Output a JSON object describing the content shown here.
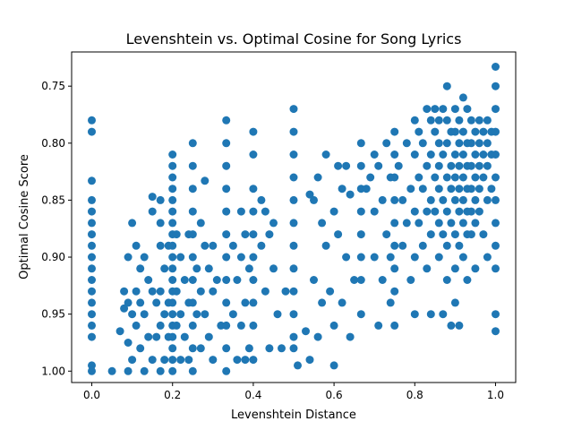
{
  "chart_data": {
    "type": "scatter",
    "title": "Levenshtein vs. Optimal Cosine for Song Lyrics",
    "xlabel": "Levenshtein Distance",
    "ylabel": "Optimal Cosine Score",
    "xlim": [
      -0.05,
      1.05
    ],
    "ylim": [
      1.01,
      0.72
    ],
    "y_axis_inverted": true,
    "xticks": [
      0.0,
      0.2,
      0.4,
      0.6,
      0.8,
      1.0
    ],
    "xtick_labels": [
      "0.0",
      "0.2",
      "0.4",
      "0.6",
      "0.8",
      "1.0"
    ],
    "yticks": [
      0.75,
      0.8,
      0.85,
      0.9,
      0.95,
      1.0
    ],
    "ytick_labels": [
      "0.75",
      "0.80",
      "0.85",
      "0.90",
      "0.95",
      "1.00"
    ],
    "grid": false,
    "marker_color": "#1f77b4",
    "points": [
      [
        0.0,
        0.78
      ],
      [
        0.0,
        0.79
      ],
      [
        0.0,
        0.833
      ],
      [
        0.0,
        0.85
      ],
      [
        0.0,
        0.86
      ],
      [
        0.0,
        0.87
      ],
      [
        0.0,
        0.88
      ],
      [
        0.0,
        0.89
      ],
      [
        0.0,
        0.9
      ],
      [
        0.0,
        0.91
      ],
      [
        0.0,
        0.92
      ],
      [
        0.0,
        0.93
      ],
      [
        0.0,
        0.94
      ],
      [
        0.0,
        0.95
      ],
      [
        0.0,
        0.96
      ],
      [
        0.0,
        0.97
      ],
      [
        0.0,
        0.995
      ],
      [
        0.0,
        1.0
      ],
      [
        0.05,
        1.0
      ],
      [
        0.07,
        0.965
      ],
      [
        0.08,
        0.945
      ],
      [
        0.08,
        0.93
      ],
      [
        0.09,
        0.9
      ],
      [
        0.09,
        0.94
      ],
      [
        0.09,
        0.975
      ],
      [
        0.09,
        1.0
      ],
      [
        0.1,
        0.87
      ],
      [
        0.1,
        0.95
      ],
      [
        0.1,
        0.99
      ],
      [
        0.11,
        0.89
      ],
      [
        0.11,
        0.93
      ],
      [
        0.11,
        0.96
      ],
      [
        0.12,
        0.91
      ],
      [
        0.12,
        0.94
      ],
      [
        0.12,
        0.98
      ],
      [
        0.13,
        0.9
      ],
      [
        0.13,
        0.95
      ],
      [
        0.13,
        1.0
      ],
      [
        0.14,
        0.92
      ],
      [
        0.14,
        0.97
      ],
      [
        0.15,
        0.86
      ],
      [
        0.15,
        0.93
      ],
      [
        0.15,
        0.99
      ],
      [
        0.15,
        0.847
      ],
      [
        0.16,
        0.94
      ],
      [
        0.16,
        0.97
      ],
      [
        0.17,
        0.85
      ],
      [
        0.17,
        0.87
      ],
      [
        0.17,
        0.89
      ],
      [
        0.17,
        0.93
      ],
      [
        0.17,
        0.96
      ],
      [
        0.17,
        1.0
      ],
      [
        0.18,
        0.91
      ],
      [
        0.18,
        0.95
      ],
      [
        0.18,
        0.99
      ],
      [
        0.19,
        0.89
      ],
      [
        0.19,
        0.94
      ],
      [
        0.19,
        0.97
      ],
      [
        0.2,
        0.81
      ],
      [
        0.2,
        0.82
      ],
      [
        0.2,
        0.83
      ],
      [
        0.2,
        0.84
      ],
      [
        0.2,
        0.85
      ],
      [
        0.2,
        0.86
      ],
      [
        0.2,
        0.87
      ],
      [
        0.2,
        0.88
      ],
      [
        0.2,
        0.89
      ],
      [
        0.2,
        0.9
      ],
      [
        0.2,
        0.91
      ],
      [
        0.2,
        0.92
      ],
      [
        0.2,
        0.93
      ],
      [
        0.2,
        0.94
      ],
      [
        0.2,
        0.95
      ],
      [
        0.2,
        0.96
      ],
      [
        0.2,
        0.97
      ],
      [
        0.2,
        0.98
      ],
      [
        0.2,
        0.99
      ],
      [
        0.2,
        1.0
      ],
      [
        0.21,
        0.88
      ],
      [
        0.21,
        0.93
      ],
      [
        0.21,
        0.96
      ],
      [
        0.22,
        0.9
      ],
      [
        0.22,
        0.95
      ],
      [
        0.22,
        0.99
      ],
      [
        0.23,
        0.92
      ],
      [
        0.23,
        0.97
      ],
      [
        0.24,
        0.88
      ],
      [
        0.24,
        0.94
      ],
      [
        0.24,
        0.99
      ],
      [
        0.25,
        0.8
      ],
      [
        0.25,
        0.82
      ],
      [
        0.25,
        0.84
      ],
      [
        0.25,
        0.86
      ],
      [
        0.25,
        0.88
      ],
      [
        0.25,
        0.9
      ],
      [
        0.25,
        0.92
      ],
      [
        0.25,
        0.94
      ],
      [
        0.25,
        0.96
      ],
      [
        0.25,
        0.98
      ],
      [
        0.25,
        1.0
      ],
      [
        0.26,
        0.91
      ],
      [
        0.26,
        0.95
      ],
      [
        0.27,
        0.87
      ],
      [
        0.27,
        0.93
      ],
      [
        0.27,
        0.98
      ],
      [
        0.28,
        0.833
      ],
      [
        0.28,
        0.89
      ],
      [
        0.28,
        0.95
      ],
      [
        0.29,
        0.91
      ],
      [
        0.29,
        0.97
      ],
      [
        0.3,
        0.89
      ],
      [
        0.3,
        0.93
      ],
      [
        0.3,
        0.99
      ],
      [
        0.31,
        0.92
      ],
      [
        0.32,
        0.96
      ],
      [
        0.333,
        0.78
      ],
      [
        0.333,
        0.8
      ],
      [
        0.333,
        0.82
      ],
      [
        0.333,
        0.84
      ],
      [
        0.333,
        0.86
      ],
      [
        0.333,
        0.88
      ],
      [
        0.333,
        0.9
      ],
      [
        0.333,
        0.92
      ],
      [
        0.333,
        0.94
      ],
      [
        0.333,
        0.96
      ],
      [
        0.333,
        0.98
      ],
      [
        0.333,
        1.0
      ],
      [
        0.35,
        0.89
      ],
      [
        0.35,
        0.95
      ],
      [
        0.36,
        0.92
      ],
      [
        0.36,
        0.99
      ],
      [
        0.37,
        0.86
      ],
      [
        0.37,
        0.9
      ],
      [
        0.37,
        0.96
      ],
      [
        0.38,
        0.88
      ],
      [
        0.38,
        0.94
      ],
      [
        0.38,
        0.99
      ],
      [
        0.39,
        0.91
      ],
      [
        0.39,
        0.98
      ],
      [
        0.4,
        0.79
      ],
      [
        0.4,
        0.81
      ],
      [
        0.4,
        0.84
      ],
      [
        0.4,
        0.86
      ],
      [
        0.4,
        0.88
      ],
      [
        0.4,
        0.9
      ],
      [
        0.4,
        0.92
      ],
      [
        0.4,
        0.94
      ],
      [
        0.4,
        0.96
      ],
      [
        0.4,
        0.99
      ],
      [
        0.42,
        0.85
      ],
      [
        0.42,
        0.89
      ],
      [
        0.43,
        0.86
      ],
      [
        0.43,
        0.93
      ],
      [
        0.44,
        0.88
      ],
      [
        0.44,
        0.98
      ],
      [
        0.45,
        0.87
      ],
      [
        0.45,
        0.91
      ],
      [
        0.46,
        0.95
      ],
      [
        0.47,
        0.98
      ],
      [
        0.48,
        0.93
      ],
      [
        0.5,
        0.77
      ],
      [
        0.5,
        0.79
      ],
      [
        0.5,
        0.81
      ],
      [
        0.5,
        0.83
      ],
      [
        0.5,
        0.85
      ],
      [
        0.5,
        0.87
      ],
      [
        0.5,
        0.89
      ],
      [
        0.5,
        0.91
      ],
      [
        0.5,
        0.93
      ],
      [
        0.5,
        0.95
      ],
      [
        0.5,
        0.97
      ],
      [
        0.5,
        0.98
      ],
      [
        0.51,
        0.995
      ],
      [
        0.53,
        0.965
      ],
      [
        0.54,
        0.845
      ],
      [
        0.54,
        0.99
      ],
      [
        0.55,
        0.85
      ],
      [
        0.55,
        0.92
      ],
      [
        0.56,
        0.83
      ],
      [
        0.56,
        0.97
      ],
      [
        0.57,
        0.87
      ],
      [
        0.57,
        0.94
      ],
      [
        0.58,
        0.81
      ],
      [
        0.58,
        0.89
      ],
      [
        0.59,
        0.93
      ],
      [
        0.6,
        0.86
      ],
      [
        0.6,
        0.96
      ],
      [
        0.6,
        0.995
      ],
      [
        0.61,
        0.82
      ],
      [
        0.61,
        0.88
      ],
      [
        0.62,
        0.84
      ],
      [
        0.62,
        0.94
      ],
      [
        0.63,
        0.82
      ],
      [
        0.63,
        0.9
      ],
      [
        0.64,
        0.845
      ],
      [
        0.64,
        0.97
      ],
      [
        0.65,
        0.92
      ],
      [
        0.667,
        0.8
      ],
      [
        0.667,
        0.82
      ],
      [
        0.667,
        0.84
      ],
      [
        0.667,
        0.86
      ],
      [
        0.667,
        0.88
      ],
      [
        0.667,
        0.9
      ],
      [
        0.667,
        0.92
      ],
      [
        0.667,
        0.95
      ],
      [
        0.68,
        0.84
      ],
      [
        0.69,
        0.83
      ],
      [
        0.7,
        0.81
      ],
      [
        0.7,
        0.86
      ],
      [
        0.7,
        0.9
      ],
      [
        0.71,
        0.82
      ],
      [
        0.71,
        0.96
      ],
      [
        0.72,
        0.85
      ],
      [
        0.72,
        0.92
      ],
      [
        0.73,
        0.8
      ],
      [
        0.73,
        0.88
      ],
      [
        0.74,
        0.83
      ],
      [
        0.74,
        0.9
      ],
      [
        0.74,
        0.94
      ],
      [
        0.75,
        0.79
      ],
      [
        0.75,
        0.81
      ],
      [
        0.75,
        0.83
      ],
      [
        0.75,
        0.85
      ],
      [
        0.75,
        0.87
      ],
      [
        0.75,
        0.89
      ],
      [
        0.75,
        0.91
      ],
      [
        0.75,
        0.93
      ],
      [
        0.75,
        0.96
      ],
      [
        0.76,
        0.82
      ],
      [
        0.77,
        0.85
      ],
      [
        0.77,
        0.89
      ],
      [
        0.78,
        0.8
      ],
      [
        0.78,
        0.87
      ],
      [
        0.79,
        0.84
      ],
      [
        0.79,
        0.92
      ],
      [
        0.8,
        0.78
      ],
      [
        0.8,
        0.81
      ],
      [
        0.8,
        0.86
      ],
      [
        0.8,
        0.9
      ],
      [
        0.8,
        0.95
      ],
      [
        0.81,
        0.79
      ],
      [
        0.81,
        0.83
      ],
      [
        0.81,
        0.87
      ],
      [
        0.82,
        0.8
      ],
      [
        0.82,
        0.84
      ],
      [
        0.82,
        0.89
      ],
      [
        0.83,
        0.77
      ],
      [
        0.83,
        0.82
      ],
      [
        0.83,
        0.86
      ],
      [
        0.83,
        0.91
      ],
      [
        0.84,
        0.78
      ],
      [
        0.84,
        0.81
      ],
      [
        0.84,
        0.85
      ],
      [
        0.84,
        0.88
      ],
      [
        0.84,
        0.95
      ],
      [
        0.85,
        0.77
      ],
      [
        0.85,
        0.79
      ],
      [
        0.85,
        0.83
      ],
      [
        0.85,
        0.86
      ],
      [
        0.86,
        0.78
      ],
      [
        0.86,
        0.8
      ],
      [
        0.86,
        0.82
      ],
      [
        0.86,
        0.84
      ],
      [
        0.86,
        0.87
      ],
      [
        0.86,
        0.9
      ],
      [
        0.87,
        0.77
      ],
      [
        0.87,
        0.81
      ],
      [
        0.87,
        0.85
      ],
      [
        0.87,
        0.88
      ],
      [
        0.87,
        0.95
      ],
      [
        0.88,
        0.75
      ],
      [
        0.88,
        0.78
      ],
      [
        0.88,
        0.8
      ],
      [
        0.88,
        0.83
      ],
      [
        0.88,
        0.86
      ],
      [
        0.88,
        0.89
      ],
      [
        0.88,
        0.92
      ],
      [
        0.89,
        0.79
      ],
      [
        0.89,
        0.82
      ],
      [
        0.89,
        0.84
      ],
      [
        0.89,
        0.87
      ],
      [
        0.89,
        0.96
      ],
      [
        0.9,
        0.77
      ],
      [
        0.9,
        0.79
      ],
      [
        0.9,
        0.81
      ],
      [
        0.9,
        0.83
      ],
      [
        0.9,
        0.85
      ],
      [
        0.9,
        0.88
      ],
      [
        0.9,
        0.91
      ],
      [
        0.9,
        0.94
      ],
      [
        0.91,
        0.78
      ],
      [
        0.91,
        0.8
      ],
      [
        0.91,
        0.82
      ],
      [
        0.91,
        0.84
      ],
      [
        0.91,
        0.86
      ],
      [
        0.91,
        0.89
      ],
      [
        0.91,
        0.96
      ],
      [
        0.92,
        0.76
      ],
      [
        0.92,
        0.79
      ],
      [
        0.92,
        0.81
      ],
      [
        0.92,
        0.83
      ],
      [
        0.92,
        0.85
      ],
      [
        0.92,
        0.87
      ],
      [
        0.92,
        0.9
      ],
      [
        0.93,
        0.77
      ],
      [
        0.93,
        0.8
      ],
      [
        0.93,
        0.82
      ],
      [
        0.93,
        0.84
      ],
      [
        0.93,
        0.86
      ],
      [
        0.93,
        0.88
      ],
      [
        0.93,
        0.92
      ],
      [
        0.94,
        0.78
      ],
      [
        0.94,
        0.8
      ],
      [
        0.94,
        0.82
      ],
      [
        0.94,
        0.84
      ],
      [
        0.94,
        0.86
      ],
      [
        0.94,
        0.88
      ],
      [
        0.95,
        0.79
      ],
      [
        0.95,
        0.81
      ],
      [
        0.95,
        0.83
      ],
      [
        0.95,
        0.85
      ],
      [
        0.95,
        0.87
      ],
      [
        0.95,
        0.91
      ],
      [
        0.96,
        0.78
      ],
      [
        0.96,
        0.8
      ],
      [
        0.96,
        0.82
      ],
      [
        0.96,
        0.84
      ],
      [
        0.96,
        0.86
      ],
      [
        0.97,
        0.79
      ],
      [
        0.97,
        0.81
      ],
      [
        0.97,
        0.83
      ],
      [
        0.97,
        0.88
      ],
      [
        0.98,
        0.78
      ],
      [
        0.98,
        0.8
      ],
      [
        0.98,
        0.82
      ],
      [
        0.98,
        0.85
      ],
      [
        0.98,
        0.9
      ],
      [
        0.99,
        0.79
      ],
      [
        0.99,
        0.81
      ],
      [
        0.99,
        0.84
      ],
      [
        1.0,
        0.733
      ],
      [
        1.0,
        0.75
      ],
      [
        1.0,
        0.77
      ],
      [
        1.0,
        0.79
      ],
      [
        1.0,
        0.81
      ],
      [
        1.0,
        0.83
      ],
      [
        1.0,
        0.85
      ],
      [
        1.0,
        0.87
      ],
      [
        1.0,
        0.89
      ],
      [
        1.0,
        0.91
      ],
      [
        1.0,
        0.95
      ],
      [
        1.0,
        0.965
      ]
    ]
  }
}
